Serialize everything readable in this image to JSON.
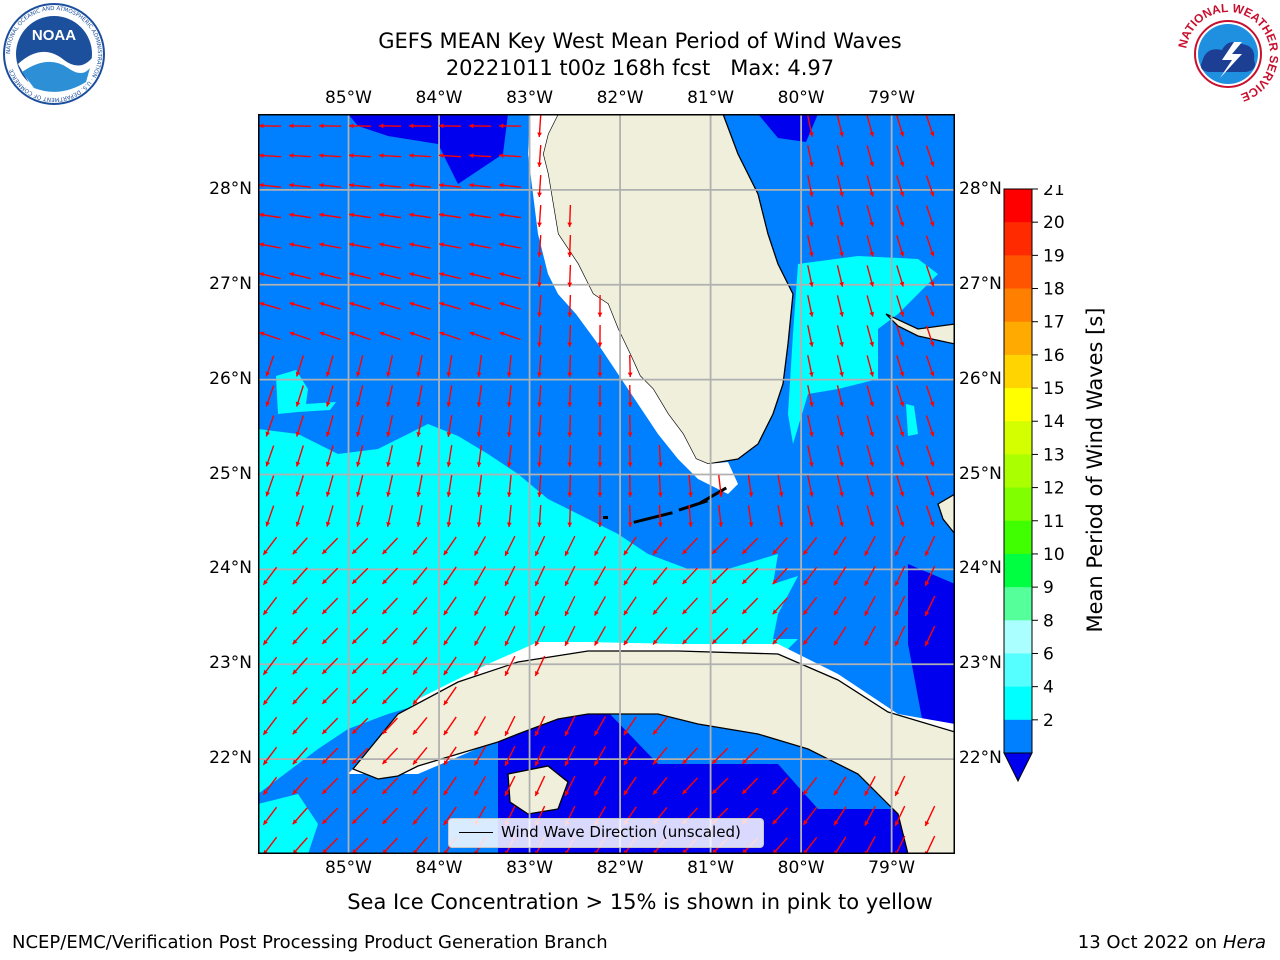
{
  "title": {
    "line1": "GEFS MEAN Key West Mean Period of Wind Waves",
    "line2": "20221011 t00z 168h fcst   Max: 4.97"
  },
  "map": {
    "lon_ticks": [
      "85°W",
      "84°W",
      "83°W",
      "82°W",
      "81°W",
      "80°W",
      "79°W"
    ],
    "lat_ticks": [
      "28°N",
      "27°N",
      "26°N",
      "25°N",
      "24°N",
      "23°N",
      "22°N"
    ],
    "extent": {
      "lon_min": -86.0,
      "lon_max": -78.3,
      "lat_min": 21.0,
      "lat_max": 28.8
    },
    "colors": {
      "land": "#efefdc",
      "band_2_4": "#0080ff",
      "band_4_6": "#00ffff",
      "below_2": "#0000ee",
      "arrow": "#ff0000",
      "grid": "#b0b0b0"
    },
    "legend": {
      "label": "Wind Wave Direction (unscaled)"
    }
  },
  "colorbar": {
    "title": "Mean Period of Wind Waves [s]",
    "ticks": [
      "21",
      "20",
      "19",
      "18",
      "17",
      "16",
      "15",
      "14",
      "13",
      "12",
      "11",
      "10",
      "9",
      "8",
      "6",
      "4",
      "2"
    ],
    "colors": [
      "#ff0000",
      "#ff2a00",
      "#ff5500",
      "#ff8000",
      "#ffaa00",
      "#ffd400",
      "#ffff00",
      "#d4ff00",
      "#aaff00",
      "#80ff00",
      "#40ff00",
      "#00ff40",
      "#55ff99",
      "#aaffff",
      "#55ffff",
      "#00ffff",
      "#0080ff"
    ],
    "under_color": "#0000ee"
  },
  "caption": "Sea Ice Concentration > 15% is shown in pink to yellow",
  "footer": {
    "left": "NCEP/EMC/Verification Post Processing Product Generation Branch",
    "right_date": "13 Oct 2022 on ",
    "right_host": "Hera"
  },
  "logos": {
    "left": {
      "name": "NOAA",
      "ring_text": "NATIONAL OCEANIC AND ATMOSPHERIC ADMINISTRATION · U.S. DEPARTMENT OF COMMERCE"
    },
    "right": {
      "name": "NATIONAL WEATHER SERVICE"
    }
  }
}
